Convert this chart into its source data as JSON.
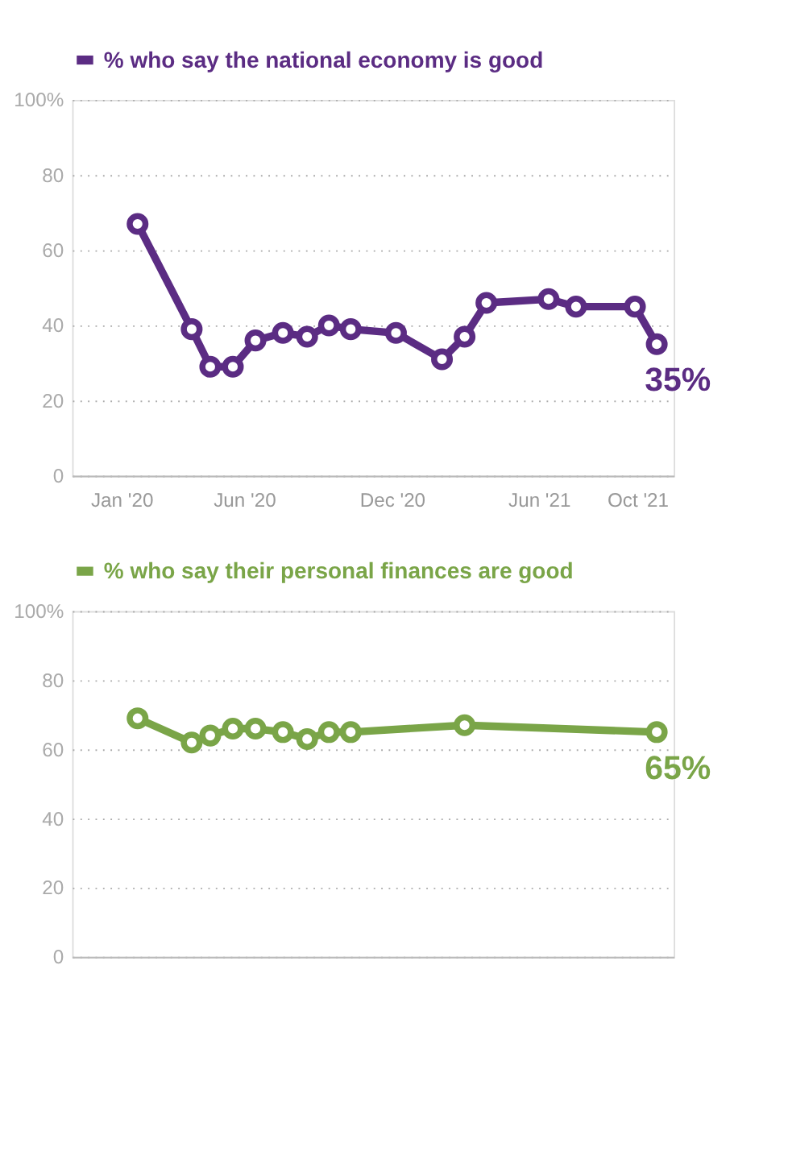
{
  "chart_data": [
    {
      "type": "line",
      "x": [
        "2020-01-21",
        "2020-03-28",
        "2020-04-20",
        "2020-05-18",
        "2020-06-15",
        "2020-07-19",
        "2020-08-18",
        "2020-09-14",
        "2020-10-11",
        "2020-12-06",
        "2021-02-01",
        "2021-03-01",
        "2021-03-28",
        "2021-06-13",
        "2021-07-17",
        "2021-09-28",
        "2021-10-25"
      ],
      "series": [
        {
          "name": "% who say the national economy is good",
          "color": "#5b2c83",
          "values": [
            67,
            39,
            29,
            29,
            36,
            38,
            37,
            40,
            39,
            38,
            31,
            37,
            46,
            47,
            45,
            45,
            35
          ],
          "value_labels": [
            null,
            null,
            null,
            null,
            null,
            null,
            null,
            null,
            null,
            null,
            null,
            null,
            null,
            null,
            null,
            null,
            "35%"
          ]
        }
      ],
      "xlim": [
        "2019-11-01",
        "2021-11-15"
      ],
      "xticks": [
        {
          "value": "2020-01-01",
          "label": "Jan '20"
        },
        {
          "value": "2020-06-01",
          "label": "Jun '20"
        },
        {
          "value": "2020-12-01",
          "label": "Dec '20"
        },
        {
          "value": "2021-06-01",
          "label": "Jun '21"
        },
        {
          "value": "2021-10-01",
          "label": "Oct '21"
        }
      ],
      "ylim": [
        0,
        100
      ],
      "yticks": [
        0,
        20,
        40,
        60,
        80,
        {
          "value": 100,
          "label": "100%"
        }
      ],
      "grid": "y",
      "legend": "top left",
      "marker": "circle"
    },
    {
      "type": "line",
      "x": [
        "2020-01-21",
        "2020-03-28",
        "2020-04-20",
        "2020-05-18",
        "2020-06-15",
        "2020-07-19",
        "2020-08-18",
        "2020-09-14",
        "2020-10-11",
        "2021-03-01",
        "2021-10-25"
      ],
      "series": [
        {
          "name": "% who say their personal finances are good",
          "color": "#7aa548",
          "values": [
            69,
            62,
            64,
            66,
            66,
            65,
            63,
            65,
            65,
            67,
            65
          ],
          "value_labels": [
            null,
            null,
            null,
            null,
            null,
            null,
            null,
            null,
            null,
            null,
            "65%"
          ]
        }
      ],
      "xlim": [
        "2019-11-01",
        "2021-11-15"
      ],
      "ylim": [
        0,
        100
      ],
      "yticks": [
        0,
        20,
        40,
        60,
        80,
        {
          "value": 100,
          "label": "100%"
        }
      ],
      "grid": "y",
      "legend": "top left",
      "marker": "circle",
      "tick_labels": "y"
    }
  ]
}
